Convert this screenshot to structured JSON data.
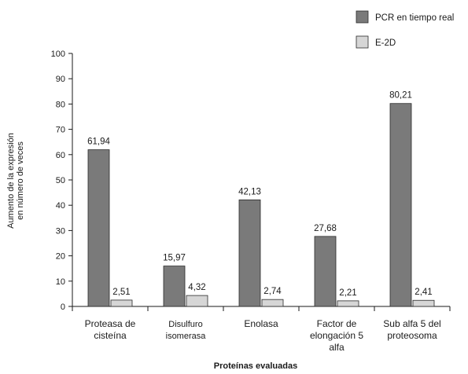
{
  "chart_data": {
    "type": "bar",
    "categories": [
      [
        "Proteasa de",
        "cisteína"
      ],
      [
        "Disulfuro",
        "isomerasa"
      ],
      [
        "Enolasa"
      ],
      [
        "Factor de",
        "elongación 5",
        "alfa"
      ],
      [
        "Sub alfa 5 del",
        "proteosoma"
      ]
    ],
    "series": [
      {
        "name": "PCR en tiempo real",
        "values": [
          61.94,
          15.97,
          42.13,
          27.68,
          80.21
        ],
        "labels": [
          "61,94",
          "15,97",
          "42,13",
          "27,68",
          "80,21"
        ],
        "color": "#7a7a7a"
      },
      {
        "name": "E-2D",
        "values": [
          2.51,
          4.32,
          2.74,
          2.21,
          2.41
        ],
        "labels": [
          "2,51",
          "4,32",
          "2,74",
          "2,21",
          "2,41"
        ],
        "color": "#d6d6d6"
      }
    ],
    "ylabel": [
      "Aumento de la expresión",
      "en número de veces"
    ],
    "xlabel": "Proteínas evaluadas",
    "ylim": [
      0,
      100
    ],
    "yticks": [
      0,
      10,
      20,
      30,
      40,
      50,
      60,
      70,
      80,
      90,
      100
    ],
    "grid": false,
    "legend": "top-right"
  }
}
